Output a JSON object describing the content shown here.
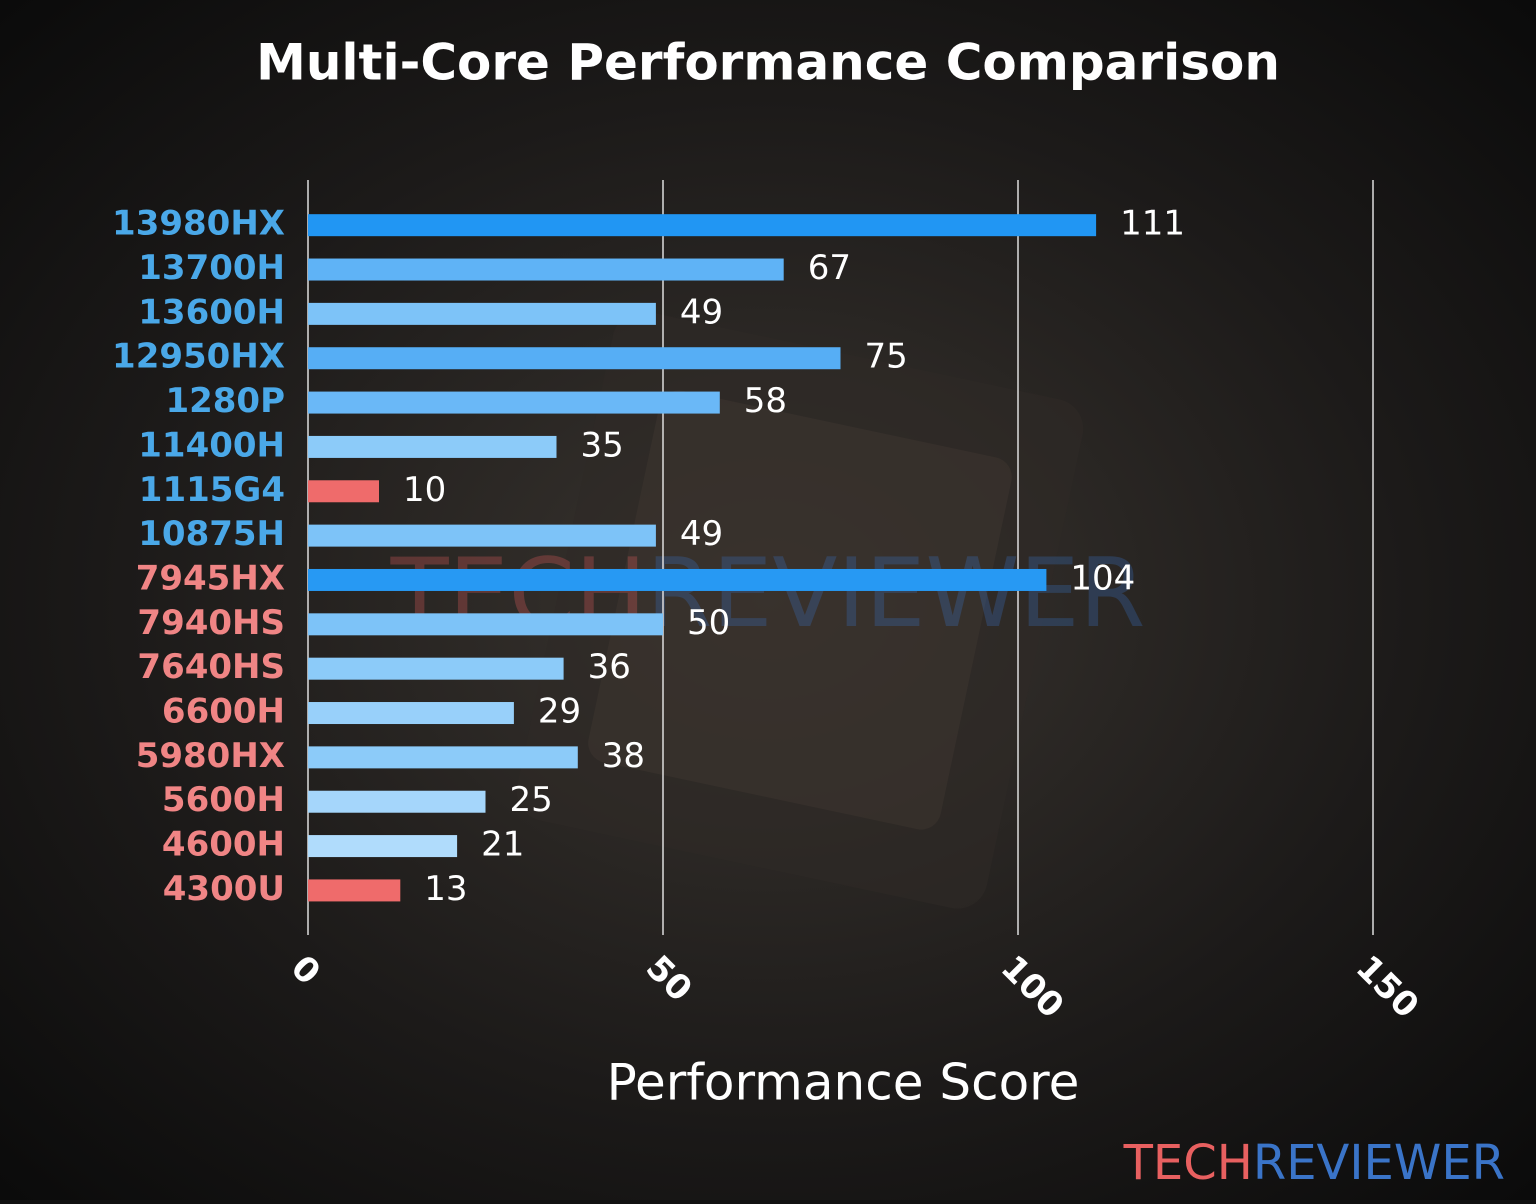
{
  "chart_data": {
    "type": "bar",
    "orientation": "horizontal",
    "title": "Multi-Core Performance Comparison",
    "xlabel": "Performance Score",
    "categories": [
      "13980HX",
      "13700H",
      "13600H",
      "12950HX",
      "1280P",
      "11400H",
      "1115G4",
      "10875H",
      "7945HX",
      "7940HS",
      "7640HS",
      "6600H",
      "5980HX",
      "5600H",
      "4600H",
      "4300U"
    ],
    "values": [
      111,
      67,
      49,
      75,
      58,
      35,
      10,
      49,
      104,
      50,
      36,
      29,
      38,
      25,
      21,
      13
    ],
    "colors": [
      "#2196f3",
      "#5fb3f6",
      "#7dc3f8",
      "#56aef5",
      "#6ab8f7",
      "#8ccbf9",
      "#ef6b6b",
      "#7dc3f8",
      "#2799f3",
      "#7dc3f8",
      "#8ccbf9",
      "#98d0fa",
      "#8ccbf9",
      "#a5d6fb",
      "#b0dcfc",
      "#ef6b6b"
    ],
    "label_colors": [
      "#4aa8e8",
      "#4aa8e8",
      "#4aa8e8",
      "#4aa8e8",
      "#4aa8e8",
      "#4aa8e8",
      "#4aa8e8",
      "#4aa8e8",
      "#f08585",
      "#f08585",
      "#f08585",
      "#f08585",
      "#f08585",
      "#f08585",
      "#f08585",
      "#f08585"
    ],
    "xlim": [
      0,
      150
    ],
    "xticks": [
      0,
      50,
      100,
      150
    ],
    "grid": true
  },
  "brand": {
    "first": "TECH",
    "second": "REVIEWER",
    "first_color": "#e86060",
    "second_color": "#3a74c8"
  }
}
